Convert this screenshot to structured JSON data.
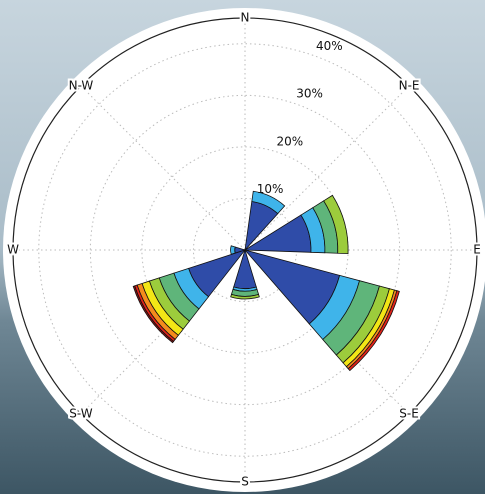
{
  "chart_data": {
    "type": "windrose",
    "theta_labels": [
      "N",
      "N-E",
      "E",
      "S-E",
      "S",
      "S-W",
      "W",
      "N-W"
    ],
    "x": [
      25,
      75,
      122,
      180,
      235,
      270
    ],
    "series": [
      {
        "color": "#2f4ca8",
        "values": [
          9.5,
          12.8,
          19,
          7.5,
          11.5,
          2
        ]
      },
      {
        "color": "#3fb4ea",
        "values": [
          2,
          2.7,
          4,
          0.5,
          3,
          0.8
        ]
      },
      {
        "color": "#5fb57a",
        "values": [
          0,
          2.5,
          4,
          1,
          3,
          0
        ]
      },
      {
        "color": "#9ccc3c",
        "values": [
          0,
          2,
          2,
          0.5,
          2,
          0
        ]
      },
      {
        "color": "#f3e616",
        "values": [
          0,
          0,
          1,
          0,
          1.5,
          0
        ]
      },
      {
        "color": "#f58b1d",
        "values": [
          0,
          0,
          0.5,
          0,
          1,
          0
        ]
      },
      {
        "color": "#e2231a",
        "values": [
          0,
          0,
          0.5,
          0,
          0.5,
          0
        ]
      },
      {
        "color": "#8b1414",
        "values": [
          0,
          0,
          0,
          0,
          0.3,
          0
        ]
      }
    ],
    "rlim": [
      0,
      45
    ],
    "rticks": [
      {
        "value": 10,
        "label": "10%"
      },
      {
        "value": 20,
        "label": "20%"
      },
      {
        "value": 30,
        "label": "30%"
      },
      {
        "value": 40,
        "label": "40%"
      }
    ],
    "grid": true
  }
}
